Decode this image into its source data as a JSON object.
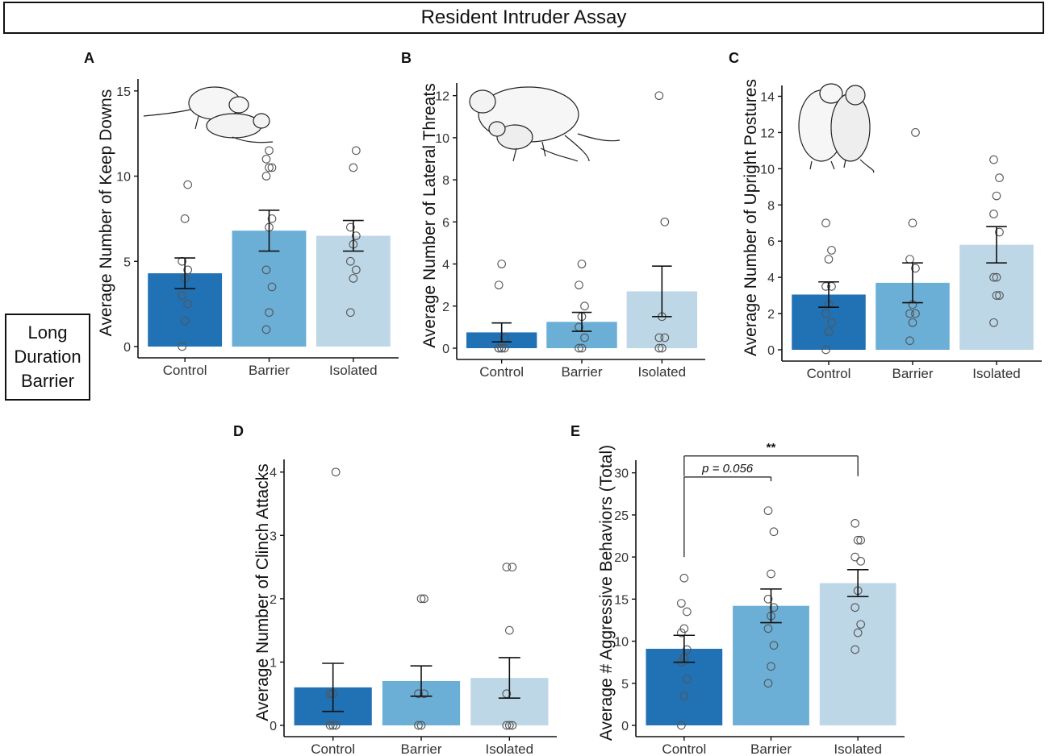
{
  "figure": {
    "title": "Resident Intruder Assay",
    "side_label": [
      "Long",
      "Duration",
      "Barrier"
    ]
  },
  "colors": {
    "bars": [
      "#2171b5",
      "#6baed6",
      "#bdd7e7"
    ],
    "axis": "#111111"
  },
  "icons": [
    "rat-keep-down-illustration",
    "rat-lateral-threat-illustration",
    "rat-upright-posture-illustration"
  ],
  "chart_data": [
    {
      "id": "A",
      "type": "bar",
      "label": "A",
      "categories": [
        "Control",
        "Barrier",
        "Isolated"
      ],
      "values": [
        4.3,
        6.8,
        6.5
      ],
      "sem": [
        0.9,
        1.2,
        0.9
      ],
      "points": [
        [
          0,
          1.5,
          2.5,
          3,
          4,
          4.5,
          5,
          7.5,
          9.5
        ],
        [
          1,
          2,
          3.5,
          4.5,
          7,
          7.5,
          10,
          10.5,
          10.5,
          11,
          11.5
        ],
        [
          2,
          4,
          4.5,
          5,
          6,
          6.5,
          7,
          10.5,
          11.5
        ]
      ],
      "ylabel": "Average Number of Keep Downs",
      "ylim": [
        0,
        15
      ],
      "yticks": [
        0,
        5,
        10,
        15
      ],
      "ymax_plot": 15.7
    },
    {
      "id": "B",
      "type": "bar",
      "label": "B",
      "categories": [
        "Control",
        "Barrier",
        "Isolated"
      ],
      "values": [
        0.75,
        1.25,
        2.7
      ],
      "sem": [
        0.45,
        0.45,
        1.2
      ],
      "points": [
        [
          0,
          0,
          0,
          0,
          0,
          0.5,
          3,
          4
        ],
        [
          0,
          0,
          0.5,
          1,
          1.5,
          2,
          3,
          4
        ],
        [
          0,
          0,
          0.5,
          0.5,
          1.5,
          6,
          12
        ]
      ],
      "ylabel": "Average Number of Lateral Threats",
      "ylim": [
        0,
        12
      ],
      "yticks": [
        0,
        2,
        4,
        6,
        8,
        10,
        12
      ],
      "ymax_plot": 12.6
    },
    {
      "id": "C",
      "type": "bar",
      "label": "C",
      "categories": [
        "Control",
        "Barrier",
        "Isolated"
      ],
      "values": [
        3.05,
        3.7,
        5.8
      ],
      "sem": [
        0.7,
        1.1,
        1.0
      ],
      "points": [
        [
          0,
          1,
          1.5,
          2,
          2.5,
          3.5,
          3.5,
          5,
          5.5,
          7
        ],
        [
          0.5,
          1.5,
          2,
          2,
          2.5,
          4.5,
          5,
          7,
          12
        ],
        [
          1.5,
          3,
          3,
          4,
          4,
          6.5,
          7.5,
          8.5,
          9.5,
          10.5
        ]
      ],
      "ylabel": "Average Number of Upright Postures",
      "ylim": [
        0,
        14
      ],
      "yticks": [
        0,
        2,
        4,
        6,
        8,
        10,
        12,
        14
      ],
      "ymax_plot": 14.6
    },
    {
      "id": "D",
      "type": "bar",
      "label": "D",
      "categories": [
        "Control",
        "Barrier",
        "Isolated"
      ],
      "values": [
        0.6,
        0.7,
        0.75
      ],
      "sem": [
        0.38,
        0.24,
        0.32
      ],
      "points": [
        [
          0,
          0,
          0,
          0.5,
          0.5,
          4
        ],
        [
          0,
          0,
          0.5,
          0.5,
          2,
          2
        ],
        [
          0,
          0,
          0,
          0.5,
          1.5,
          2.5,
          2.5
        ]
      ],
      "ylabel": "Average Number of Clinch Attacks",
      "ylim": [
        0,
        4
      ],
      "yticks": [
        0,
        1,
        2,
        3,
        4
      ],
      "ymax_plot": 4.2
    },
    {
      "id": "E",
      "type": "bar",
      "label": "E",
      "categories": [
        "Control",
        "Barrier",
        "Isolated"
      ],
      "values": [
        9.1,
        14.2,
        16.9
      ],
      "sem": [
        1.6,
        2.0,
        1.6
      ],
      "points": [
        [
          0,
          3.5,
          5.5,
          7.5,
          8,
          9,
          11,
          11.5,
          13.5,
          14.5,
          17.5
        ],
        [
          5,
          7,
          9.5,
          11.5,
          13,
          14,
          15,
          18,
          23,
          25.5
        ],
        [
          9,
          11,
          12,
          14,
          16,
          19.5,
          20,
          22,
          22,
          24
        ]
      ],
      "ylabel": "Average # Aggressive Behaviors (Total)",
      "ylim": [
        0,
        30
      ],
      "yticks": [
        0,
        5,
        10,
        15,
        20,
        25,
        30
      ],
      "ymax_plot": 31.5,
      "annotations": [
        {
          "text": "p = 0.056",
          "from": 0,
          "to": 1,
          "y": 29.5,
          "drop_from": 20,
          "drop_to": 29
        },
        {
          "text": "**",
          "from": 0,
          "to": 2,
          "y": 32,
          "drop_from": 29.6,
          "drop_to": 29.6
        }
      ]
    }
  ]
}
